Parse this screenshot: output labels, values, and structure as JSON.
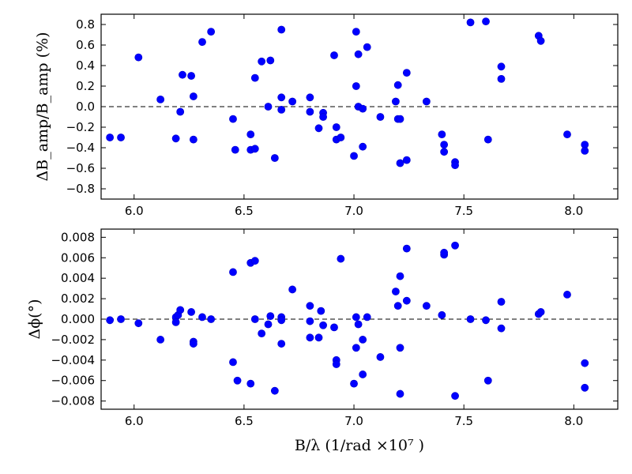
{
  "chart_data": [
    {
      "type": "scatter",
      "ylabel": "ΔB_amp/B_amp (%)",
      "xlim": [
        5.85,
        8.2
      ],
      "ylim": [
        -0.9,
        0.9
      ],
      "xticks": [
        "6.0",
        "6.5",
        "7.0",
        "7.5",
        "8.0"
      ],
      "yticks": [
        "0.8",
        "0.6",
        "0.4",
        "0.2",
        "0.0",
        "−0.2",
        "−0.4",
        "−0.6",
        "−0.8"
      ],
      "reference_line_y": 0,
      "marker_color": "#0000ff",
      "points": [
        [
          5.89,
          -0.3
        ],
        [
          5.94,
          -0.3
        ],
        [
          6.02,
          0.48
        ],
        [
          6.12,
          0.07
        ],
        [
          6.19,
          -0.31
        ],
        [
          6.21,
          -0.05
        ],
        [
          6.22,
          0.31
        ],
        [
          6.26,
          0.3
        ],
        [
          6.27,
          -0.32
        ],
        [
          6.27,
          0.1
        ],
        [
          6.31,
          0.63
        ],
        [
          6.35,
          0.73
        ],
        [
          6.45,
          -0.12
        ],
        [
          6.46,
          -0.42
        ],
        [
          6.53,
          -0.27
        ],
        [
          6.53,
          -0.42
        ],
        [
          6.55,
          0.28
        ],
        [
          6.55,
          -0.41
        ],
        [
          6.58,
          0.44
        ],
        [
          6.61,
          0.0
        ],
        [
          6.62,
          0.45
        ],
        [
          6.64,
          -0.5
        ],
        [
          6.67,
          0.75
        ],
        [
          6.67,
          0.09
        ],
        [
          6.67,
          -0.03
        ],
        [
          6.72,
          0.05
        ],
        [
          6.8,
          0.09
        ],
        [
          6.8,
          -0.05
        ],
        [
          6.84,
          -0.21
        ],
        [
          6.86,
          -0.06
        ],
        [
          6.86,
          -0.1
        ],
        [
          6.91,
          0.5
        ],
        [
          6.92,
          -0.2
        ],
        [
          6.92,
          -0.32
        ],
        [
          6.94,
          -0.3
        ],
        [
          7.0,
          -0.48
        ],
        [
          7.01,
          0.73
        ],
        [
          7.01,
          0.2
        ],
        [
          7.02,
          0.51
        ],
        [
          7.02,
          0.0
        ],
        [
          7.04,
          -0.02
        ],
        [
          7.04,
          -0.39
        ],
        [
          7.06,
          0.58
        ],
        [
          7.12,
          -0.1
        ],
        [
          7.19,
          0.05
        ],
        [
          7.2,
          0.21
        ],
        [
          7.2,
          -0.12
        ],
        [
          7.21,
          -0.55
        ],
        [
          7.21,
          -0.12
        ],
        [
          7.24,
          0.33
        ],
        [
          7.24,
          -0.52
        ],
        [
          7.33,
          0.05
        ],
        [
          7.4,
          -0.27
        ],
        [
          7.41,
          -0.37
        ],
        [
          7.41,
          -0.44
        ],
        [
          7.46,
          -0.54
        ],
        [
          7.46,
          -0.57
        ],
        [
          7.53,
          0.82
        ],
        [
          7.6,
          0.83
        ],
        [
          7.61,
          -0.32
        ],
        [
          7.67,
          0.39
        ],
        [
          7.67,
          0.27
        ],
        [
          7.84,
          0.69
        ],
        [
          7.85,
          0.64
        ],
        [
          7.97,
          -0.27
        ],
        [
          8.05,
          -0.37
        ],
        [
          8.05,
          -0.43
        ]
      ]
    },
    {
      "type": "scatter",
      "xlabel": "B/λ (1/rad ×10⁷ )",
      "ylabel": "Δϕ(°)",
      "xlim": [
        5.85,
        8.2
      ],
      "ylim": [
        -0.0088,
        0.0088
      ],
      "xticks": [
        "6.0",
        "6.5",
        "7.0",
        "7.5",
        "8.0"
      ],
      "yticks": [
        "0.008",
        "0.006",
        "0.004",
        "0.002",
        "0.000",
        "−0.002",
        "−0.004",
        "−0.006",
        "−0.008"
      ],
      "reference_line_y": 0,
      "marker_color": "#0000ff",
      "points": [
        [
          5.89,
          -0.0001
        ],
        [
          5.94,
          0.0
        ],
        [
          6.02,
          -0.0004
        ],
        [
          6.12,
          -0.002
        ],
        [
          6.19,
          0.0002
        ],
        [
          6.19,
          -0.0003
        ],
        [
          6.2,
          0.0004
        ],
        [
          6.21,
          0.0009
        ],
        [
          6.26,
          0.0007
        ],
        [
          6.27,
          -0.0022
        ],
        [
          6.27,
          -0.0024
        ],
        [
          6.31,
          0.0002
        ],
        [
          6.35,
          0.0
        ],
        [
          6.45,
          0.0046
        ],
        [
          6.45,
          -0.0042
        ],
        [
          6.47,
          -0.006
        ],
        [
          6.53,
          0.0055
        ],
        [
          6.53,
          -0.0063
        ],
        [
          6.55,
          0.0057
        ],
        [
          6.55,
          0.0
        ],
        [
          6.58,
          -0.0014
        ],
        [
          6.61,
          -0.0005
        ],
        [
          6.62,
          0.0003
        ],
        [
          6.64,
          -0.007
        ],
        [
          6.67,
          0.0002
        ],
        [
          6.67,
          -0.0001
        ],
        [
          6.67,
          -0.0024
        ],
        [
          6.72,
          0.0029
        ],
        [
          6.8,
          0.0013
        ],
        [
          6.8,
          -0.0002
        ],
        [
          6.8,
          -0.0018
        ],
        [
          6.84,
          -0.0018
        ],
        [
          6.85,
          0.0008
        ],
        [
          6.86,
          -0.0006
        ],
        [
          6.91,
          -0.0008
        ],
        [
          6.92,
          -0.004
        ],
        [
          6.92,
          -0.0044
        ],
        [
          6.94,
          0.0059
        ],
        [
          7.0,
          -0.0063
        ],
        [
          7.01,
          0.0002
        ],
        [
          7.01,
          -0.0028
        ],
        [
          7.02,
          -0.0005
        ],
        [
          7.04,
          -0.002
        ],
        [
          7.04,
          -0.0054
        ],
        [
          7.06,
          0.0002
        ],
        [
          7.12,
          -0.0037
        ],
        [
          7.19,
          0.0027
        ],
        [
          7.2,
          0.0013
        ],
        [
          7.21,
          0.0042
        ],
        [
          7.21,
          -0.0028
        ],
        [
          7.21,
          -0.0073
        ],
        [
          7.24,
          0.0069
        ],
        [
          7.24,
          0.0018
        ],
        [
          7.33,
          0.0013
        ],
        [
          7.4,
          0.0004
        ],
        [
          7.41,
          0.0063
        ],
        [
          7.41,
          0.0065
        ],
        [
          7.46,
          0.0072
        ],
        [
          7.46,
          -0.0075
        ],
        [
          7.53,
          0.0
        ],
        [
          7.6,
          -0.0001
        ],
        [
          7.61,
          -0.006
        ],
        [
          7.67,
          0.0017
        ],
        [
          7.67,
          -0.0009
        ],
        [
          7.84,
          0.0005
        ],
        [
          7.85,
          0.0007
        ],
        [
          7.97,
          0.0024
        ],
        [
          8.05,
          -0.0043
        ],
        [
          8.05,
          -0.0067
        ]
      ]
    }
  ]
}
